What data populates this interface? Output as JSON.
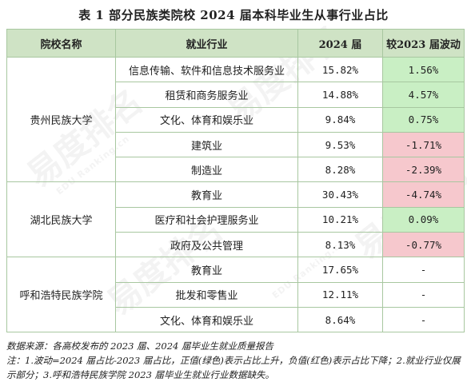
{
  "title": "表 1  部分民族类院校 2024 届本科毕业生从事行业占比",
  "headers": [
    "院校名称",
    "就业行业",
    "2024 届",
    "较2023 届波动"
  ],
  "groups": [
    {
      "school": "贵州民族大学",
      "rows": [
        {
          "industry": "信息传输、软件和信息技术服务业",
          "share": "15.82%",
          "change": "1.56%",
          "sign": "pos"
        },
        {
          "industry": "租赁和商务服务业",
          "share": "14.88%",
          "change": "4.57%",
          "sign": "pos"
        },
        {
          "industry": "文化、体育和娱乐业",
          "share": "9.84%",
          "change": "0.75%",
          "sign": "pos"
        },
        {
          "industry": "建筑业",
          "share": "9.53%",
          "change": "-1.71%",
          "sign": "neg"
        },
        {
          "industry": "制造业",
          "share": "8.28%",
          "change": "-2.39%",
          "sign": "neg"
        }
      ]
    },
    {
      "school": "湖北民族大学",
      "rows": [
        {
          "industry": "教育业",
          "share": "30.43%",
          "change": "-4.74%",
          "sign": "neg"
        },
        {
          "industry": "医疗和社会护理服务业",
          "share": "10.21%",
          "change": "0.09%",
          "sign": "pos"
        },
        {
          "industry": "政府及公共管理",
          "share": "8.13%",
          "change": "-0.77%",
          "sign": "neg"
        }
      ]
    },
    {
      "school": "呼和浩特民族学院",
      "rows": [
        {
          "industry": "教育业",
          "share": "17.65%",
          "change": "-",
          "sign": "none"
        },
        {
          "industry": "批发和零售业",
          "share": "12.11%",
          "change": "-",
          "sign": "none"
        },
        {
          "industry": "文化、体育和娱乐业",
          "share": "8.64%",
          "change": "-",
          "sign": "none"
        }
      ]
    }
  ],
  "notes": {
    "source": "数据来源：各高校发布的 2023 届、2024 届毕业生就业质量报告",
    "note": "注：1.波动=2024 届占比-2023 届占比，正值(绿色)表示占比上升，负值(红色)表示占比下降；2.就业行业仅展示部分；3.呼和浩特民族学院 2023 届毕业生就业行业数据缺失。"
  },
  "watermark": {
    "brand": "易度排名",
    "sub": "EDU Ranking.cn"
  },
  "colors": {
    "header_bg": "#cfe3c5",
    "positive_bg": "#c9efc4",
    "negative_bg": "#f6c8cd",
    "border": "#a8c7a0"
  }
}
